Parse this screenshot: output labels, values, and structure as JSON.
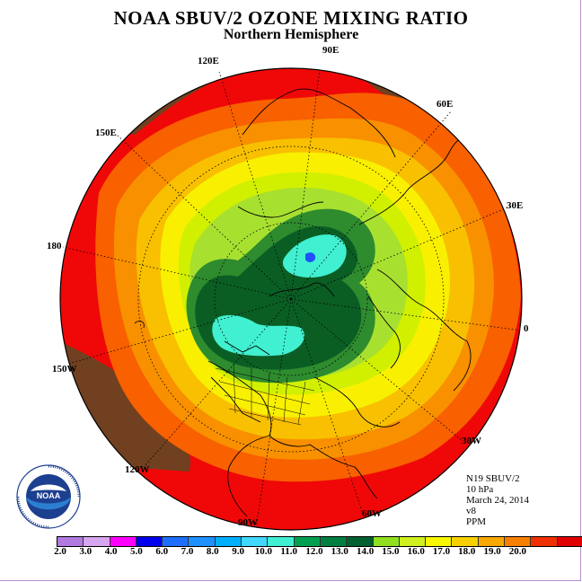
{
  "title": "NOAA SBUV/2 OZONE MIXING RATIO",
  "subtitle": "Northern Hemisphere",
  "longitude_labels": {
    "e120": "120E",
    "e90": "90E",
    "e60": "60E",
    "e150": "150E",
    "e30": "30E",
    "l180": "180",
    "l0": "0",
    "w150": "150W",
    "w30": "30W",
    "w120": "120W",
    "w90": "90W",
    "w60": "60W"
  },
  "info": {
    "instrument": "N19 SBUV/2",
    "level": "10 hPa",
    "date": "March 24, 2014",
    "version": "v8",
    "units": "PPM"
  },
  "logo_text": "NOAA",
  "colorbar": {
    "ticks": [
      "2.0",
      "3.0",
      "4.0",
      "5.0",
      "6.0",
      "7.0",
      "8.0",
      "9.0",
      "10.0",
      "11.0",
      "12.0",
      "13.0",
      "14.0",
      "15.0",
      "16.0",
      "17.0",
      "18.0",
      "19.0",
      "20.0"
    ],
    "colors": [
      "#b07ae0",
      "#d6a6f0",
      "#ff00ff",
      "#0000ee",
      "#1e6fff",
      "#1e90ff",
      "#00b0ff",
      "#40d8ff",
      "#40f0d0",
      "#00a050",
      "#008040",
      "#006030",
      "#90e020",
      "#d0f020",
      "#f8f800",
      "#f8d000",
      "#f8a800",
      "#f88000",
      "#f03000",
      "#e00000",
      "#704020"
    ]
  },
  "map_colors": {
    "z19": "#704020",
    "z18": "#f00808",
    "z17": "#f86000",
    "z16": "#f89000",
    "z15": "#f8c000",
    "z14": "#f8f000",
    "z13": "#d0f000",
    "z12": "#a8e030",
    "z11": "#2e8b2e",
    "z10": "#0a5e24",
    "z9": "#40f0d0",
    "z8": "#2050ff"
  }
}
